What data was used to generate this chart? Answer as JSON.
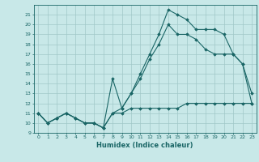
{
  "xlabel": "Humidex (Indice chaleur)",
  "bg_color": "#c8e8e8",
  "grid_color": "#a0c8c8",
  "line_color": "#1a6666",
  "xlim": [
    -0.5,
    23.5
  ],
  "ylim": [
    9,
    22
  ],
  "yticks": [
    9,
    10,
    11,
    12,
    13,
    14,
    15,
    16,
    17,
    18,
    19,
    20,
    21
  ],
  "xticks": [
    0,
    1,
    2,
    3,
    4,
    5,
    6,
    7,
    8,
    9,
    10,
    11,
    12,
    13,
    14,
    15,
    16,
    17,
    18,
    19,
    20,
    21,
    22,
    23
  ],
  "series": [
    {
      "x": [
        0,
        1,
        2,
        3,
        4,
        5,
        6,
        7,
        8,
        9,
        10,
        11,
        12,
        13,
        14,
        15,
        16,
        17,
        18,
        19,
        20,
        21,
        22,
        23
      ],
      "y": [
        11,
        10,
        10.5,
        11,
        10.5,
        10,
        10,
        9.5,
        11,
        11,
        11.5,
        11.5,
        11.5,
        11.5,
        11.5,
        11.5,
        12,
        12,
        12,
        12,
        12,
        12,
        12,
        12
      ]
    },
    {
      "x": [
        0,
        1,
        2,
        3,
        4,
        5,
        6,
        7,
        8,
        9,
        10,
        11,
        12,
        13,
        14,
        15,
        16,
        17,
        18,
        19,
        20,
        21,
        22,
        23
      ],
      "y": [
        11,
        10,
        10.5,
        11,
        10.5,
        10,
        10,
        9.5,
        11,
        11.5,
        13,
        14.5,
        16.5,
        18,
        20,
        19,
        19,
        18.5,
        17.5,
        17,
        17,
        17,
        16,
        12
      ]
    },
    {
      "x": [
        0,
        1,
        2,
        3,
        4,
        5,
        6,
        7,
        8,
        9,
        10,
        11,
        12,
        13,
        14,
        15,
        16,
        17,
        18,
        19,
        20,
        21,
        22,
        23
      ],
      "y": [
        11,
        10,
        10.5,
        11,
        10.5,
        10,
        10,
        9.5,
        14.5,
        11.5,
        13,
        15,
        17,
        19,
        21.5,
        21,
        20.5,
        19.5,
        19.5,
        19.5,
        19,
        17,
        16,
        13
      ]
    }
  ]
}
